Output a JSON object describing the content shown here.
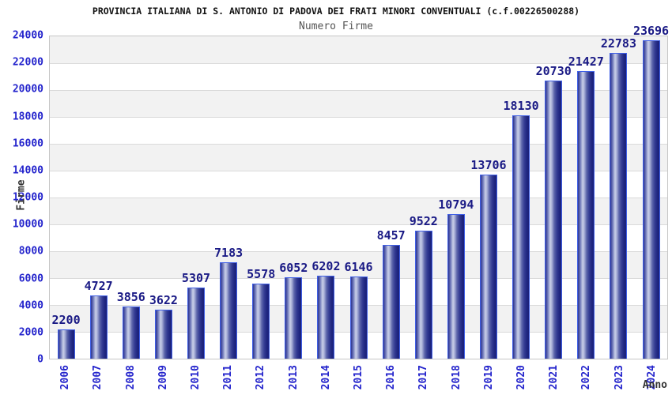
{
  "title": "PROVINCIA ITALIANA DI S. ANTONIO DI PADOVA DEI FRATI MINORI CONVENTUALI (c.f.00226500288)",
  "subtitle": "Numero Firme",
  "chart_data": {
    "type": "bar",
    "title": "PROVINCIA ITALIANA DI S. ANTONIO DI PADOVA DEI FRATI MINORI CONVENTUALI (c.f.00226500288)",
    "subtitle": "Numero Firme",
    "xlabel": "Anno",
    "ylabel": "Firme",
    "categories": [
      "2006",
      "2007",
      "2008",
      "2009",
      "2010",
      "2011",
      "2012",
      "2013",
      "2014",
      "2015",
      "2016",
      "2017",
      "2018",
      "2019",
      "2020",
      "2021",
      "2022",
      "2023",
      "2024"
    ],
    "values": [
      2200,
      4727,
      3856,
      3622,
      5307,
      7183,
      5578,
      6052,
      6202,
      6146,
      8457,
      9522,
      10794,
      13706,
      18130,
      20730,
      21427,
      22783,
      23696
    ],
    "ylim": [
      0,
      24000
    ],
    "y_ticks": [
      0,
      2000,
      4000,
      6000,
      8000,
      10000,
      12000,
      14000,
      16000,
      18000,
      20000,
      22000,
      24000
    ],
    "grid": "horizontal gridlines with alternating shaded bands",
    "legend": "none",
    "colors": {
      "band_color": "#f2f2f2",
      "grid_color": "#dadada",
      "axis_label_color": "#2424cc",
      "value_label_color": "#1a1a85",
      "bar_border": "#3f5fe6",
      "bar_dark": "#1b2078",
      "bar_light": "#c9cfe8"
    }
  }
}
